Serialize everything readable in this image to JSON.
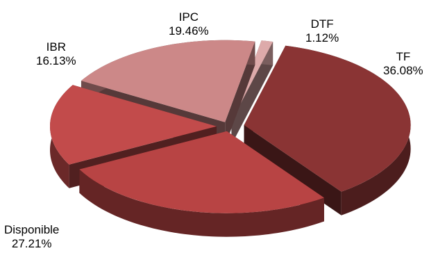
{
  "chart_data": {
    "type": "pie",
    "slices": [
      {
        "label": "TF",
        "value": 36.08,
        "value_label": "36.08%",
        "color": "#8a3434"
      },
      {
        "label": "Disponible",
        "value": 27.21,
        "value_label": "27.21%",
        "color": "#b84444"
      },
      {
        "label": "IBR",
        "value": 16.13,
        "value_label": "16.13%",
        "color": "#c24b4b"
      },
      {
        "label": "IPC",
        "value": 19.46,
        "value_label": "19.46%",
        "color": "#cc8888"
      },
      {
        "label": "DTF",
        "value": 1.12,
        "value_label": "1.12%",
        "color": "#ddaaaa"
      }
    ],
    "legend": "none",
    "style": "3d exploded pie"
  }
}
